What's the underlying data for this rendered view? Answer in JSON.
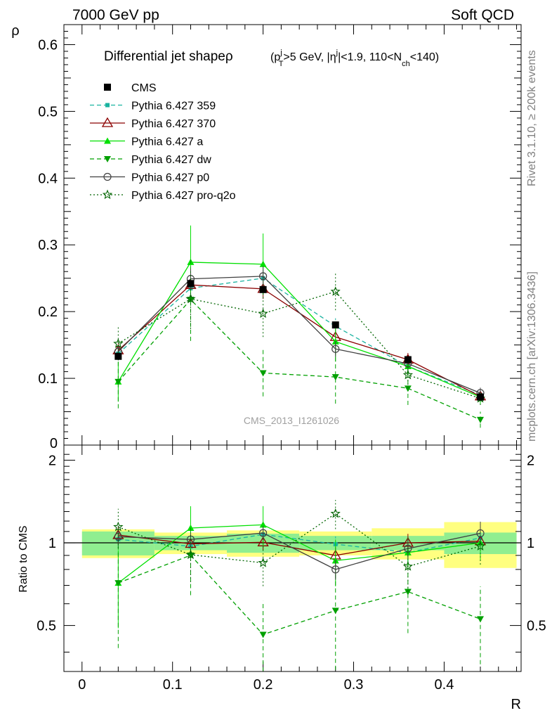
{
  "header": {
    "left": "7000 GeV pp",
    "right": "Soft QCD"
  },
  "side_labels": {
    "rivet": "Rivet 3.1.10, ≥ 200k events",
    "mcplots": "mcplots.cern.ch [arXiv:1306.3436]"
  },
  "watermark": "CMS_2013_I1261026",
  "chart_data": {
    "type": "line",
    "title_main": "Differential jet shape",
    "title_rho": "ρ",
    "title_cut_parts": {
      "open": "(p",
      "pt_sub": "T",
      "j_sup": "j",
      "gt5": ">5 GeV, |η",
      "eta_sup": "j",
      "eta_rest": "|<1.9, 110<N",
      "nch_sub": "ch",
      "close": "<140)"
    },
    "ylabel_top": "ρ",
    "ylabel_bottom": "Ratio to CMS",
    "xlabel": "R",
    "x": [
      0.04,
      0.12,
      0.2,
      0.28,
      0.36,
      0.44
    ],
    "xlim": [
      -0.02,
      0.485
    ],
    "top_ylim": [
      0,
      0.63
    ],
    "bottom_ylim": [
      0.34,
      2.27
    ],
    "x_ticks": [
      "0",
      "0.1",
      "0.2",
      "0.3",
      "0.4"
    ],
    "top_y_ticks": [
      "0",
      "0.1",
      "0.2",
      "0.3",
      "0.4",
      "0.5",
      "0.6"
    ],
    "bottom_y_ticks": [
      "0.5",
      "1",
      "2"
    ],
    "cms": {
      "name": "CMS",
      "values": [
        0.133,
        0.242,
        0.233,
        0.18,
        0.128,
        0.072
      ]
    },
    "band_inner": [
      0.1,
      0.06,
      0.08,
      0.06,
      0.06,
      0.09
    ],
    "band_outer": [
      0.12,
      0.09,
      0.11,
      0.1,
      0.13,
      0.19
    ],
    "series": [
      {
        "name": "Pythia 6.427 359",
        "color": "#1ab3a0",
        "dash": "6,4",
        "marker": "square_small",
        "values": [
          0.137,
          0.235,
          0.25,
          0.178,
          0.118,
          0.075
        ],
        "err": [
          0.01,
          0.015,
          0.015,
          0.012,
          0.01,
          0.008
        ]
      },
      {
        "name": "Pythia 6.427 370",
        "color": "#8b0000",
        "dash": "",
        "marker": "triangle_open",
        "values": [
          0.142,
          0.24,
          0.234,
          0.162,
          0.128,
          0.073
        ],
        "err": [
          0.01,
          0.015,
          0.015,
          0.012,
          0.01,
          0.008
        ]
      },
      {
        "name": "Pythia 6.427 a",
        "color": "#00e000",
        "dash": "",
        "marker": "triangle_filled",
        "values": [
          0.095,
          0.274,
          0.271,
          0.155,
          0.118,
          0.072
        ],
        "err": [
          0.03,
          0.055,
          0.046,
          0.03,
          0.015,
          0.01
        ]
      },
      {
        "name": "Pythia 6.427 dw",
        "color": "#00a000",
        "dash": "6,4",
        "marker": "triangle_down",
        "values": [
          0.095,
          0.218,
          0.108,
          0.102,
          0.085,
          0.038
        ],
        "err": [
          0.04,
          0.062,
          0.035,
          0.04,
          0.025,
          0.012
        ]
      },
      {
        "name": "Pythia 6.427 p0",
        "color": "#404040",
        "dash": "",
        "marker": "circle_open",
        "values": [
          0.14,
          0.249,
          0.253,
          0.144,
          0.122,
          0.078
        ],
        "err": [
          0.01,
          0.015,
          0.015,
          0.012,
          0.01,
          0.008
        ]
      },
      {
        "name": "Pythia 6.427 pro-q2o",
        "color": "#006400",
        "dash": "2,3",
        "marker": "star",
        "values": [
          0.152,
          0.219,
          0.197,
          0.23,
          0.105,
          0.07
        ],
        "err": [
          0.025,
          0.045,
          0.035,
          0.028,
          0.02,
          0.01
        ]
      }
    ]
  }
}
